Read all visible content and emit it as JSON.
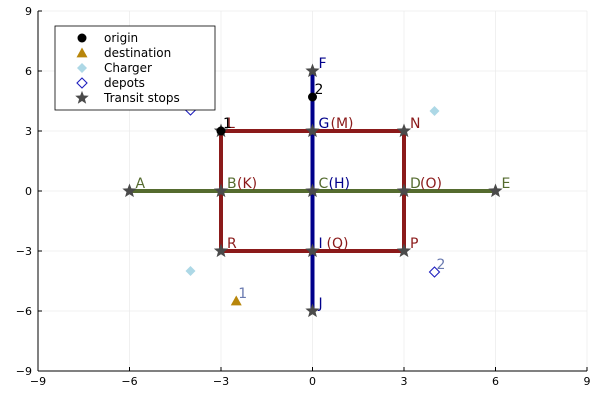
{
  "chart_data": {
    "type": "scatter",
    "title": "",
    "xlabel": "",
    "ylabel": "",
    "xlim": [
      -9,
      9
    ],
    "ylim": [
      -9,
      9
    ],
    "x_ticks": [
      -9,
      -6,
      -3,
      0,
      3,
      6,
      9
    ],
    "y_ticks": [
      -9,
      -6,
      -3,
      0,
      3,
      6,
      9
    ],
    "x_tick_labels": [
      "−9",
      "−6",
      "−3",
      "0",
      "3",
      "6",
      "9"
    ],
    "y_tick_labels": [
      "−9",
      "−6",
      "−3",
      "0",
      "3",
      "6",
      "9"
    ],
    "grid": true,
    "legend_position": "top-left",
    "routes": [
      {
        "color": "#8b1a1a",
        "points": [
          [
            -3,
            3
          ],
          [
            3,
            3
          ],
          [
            3,
            -3
          ],
          [
            -3,
            -3
          ],
          [
            -3,
            3
          ]
        ]
      },
      {
        "color": "#556b2f",
        "points": [
          [
            -6,
            0
          ],
          [
            6,
            0
          ]
        ]
      },
      {
        "color": "#00008b",
        "points": [
          [
            0,
            6
          ],
          [
            0,
            -6
          ]
        ]
      }
    ],
    "series": [
      {
        "name": "origin",
        "marker": "circle",
        "color": "#000000",
        "points": [
          [
            -3,
            3
          ],
          [
            0,
            4.7
          ]
        ]
      },
      {
        "name": "destination",
        "marker": "triangle",
        "color": "#b8860b",
        "points": [
          [
            -2.5,
            -5.5
          ]
        ]
      },
      {
        "name": "Charger",
        "marker": "diamond",
        "color": "#add8e6",
        "points": [
          [
            4,
            4
          ],
          [
            -4,
            -4
          ]
        ]
      },
      {
        "name": "depots",
        "marker": "diamond-open",
        "color": "#1f1fbf",
        "points": [
          [
            -4,
            4.05
          ],
          [
            4,
            -4.05
          ]
        ]
      },
      {
        "name": "Transit stops",
        "marker": "star",
        "color": "#4a4a4a",
        "points": [
          [
            -6,
            0
          ],
          [
            -3,
            0
          ],
          [
            0,
            0
          ],
          [
            3,
            0
          ],
          [
            6,
            0
          ],
          [
            0,
            6
          ],
          [
            0,
            3
          ],
          [
            0,
            -3
          ],
          [
            0,
            -6
          ],
          [
            -3,
            3
          ],
          [
            3,
            3
          ],
          [
            -3,
            -3
          ],
          [
            3,
            -3
          ]
        ]
      }
    ],
    "stop_labels": [
      {
        "text": "A",
        "x": -6,
        "y": 0,
        "color": "#556b2f"
      },
      {
        "text": "B",
        "x": -3,
        "y": 0,
        "color": "#556b2f"
      },
      {
        "text": "(K)",
        "x": -3,
        "y": 0,
        "color": "#8b1a1a",
        "offset": "after-B"
      },
      {
        "text": "C",
        "x": 0,
        "y": 0,
        "color": "#556b2f"
      },
      {
        "text": "(H)",
        "x": 0,
        "y": 0,
        "color": "#00008b",
        "offset": "after-C"
      },
      {
        "text": "D",
        "x": 3,
        "y": 0,
        "color": "#556b2f"
      },
      {
        "text": "(O)",
        "x": 3,
        "y": 0,
        "color": "#8b1a1a",
        "offset": "after-D"
      },
      {
        "text": "E",
        "x": 6,
        "y": 0,
        "color": "#556b2f"
      },
      {
        "text": "F",
        "x": 0,
        "y": 6,
        "color": "#00008b"
      },
      {
        "text": "G",
        "x": 0,
        "y": 3,
        "color": "#00008b"
      },
      {
        "text": "(M)",
        "x": 0,
        "y": 3,
        "color": "#8b1a1a",
        "offset": "after-G"
      },
      {
        "text": "I",
        "x": 0,
        "y": -3,
        "color": "#00008b"
      },
      {
        "text": "(Q)",
        "x": 0,
        "y": -3,
        "color": "#8b1a1a",
        "offset": "after-I"
      },
      {
        "text": "J",
        "x": 0,
        "y": -6,
        "color": "#00008b"
      },
      {
        "text": "L",
        "x": -3,
        "y": 3,
        "color": "#8b1a1a"
      },
      {
        "text": "N",
        "x": 3,
        "y": 3,
        "color": "#8b1a1a"
      },
      {
        "text": "R",
        "x": -3,
        "y": -3,
        "color": "#8b1a1a"
      },
      {
        "text": "P",
        "x": 3,
        "y": -3,
        "color": "#8b1a1a"
      }
    ],
    "point_labels": [
      {
        "text": "1",
        "x": -3,
        "y": 3,
        "color": "#000000"
      },
      {
        "text": "2",
        "x": 0,
        "y": 4.7,
        "color": "#000000"
      },
      {
        "text": "1",
        "x": -2.5,
        "y": -5.5,
        "color": "#6a7ab0"
      },
      {
        "text": "2",
        "x": 4,
        "y": -4.05,
        "color": "#6a7ab0"
      }
    ]
  }
}
